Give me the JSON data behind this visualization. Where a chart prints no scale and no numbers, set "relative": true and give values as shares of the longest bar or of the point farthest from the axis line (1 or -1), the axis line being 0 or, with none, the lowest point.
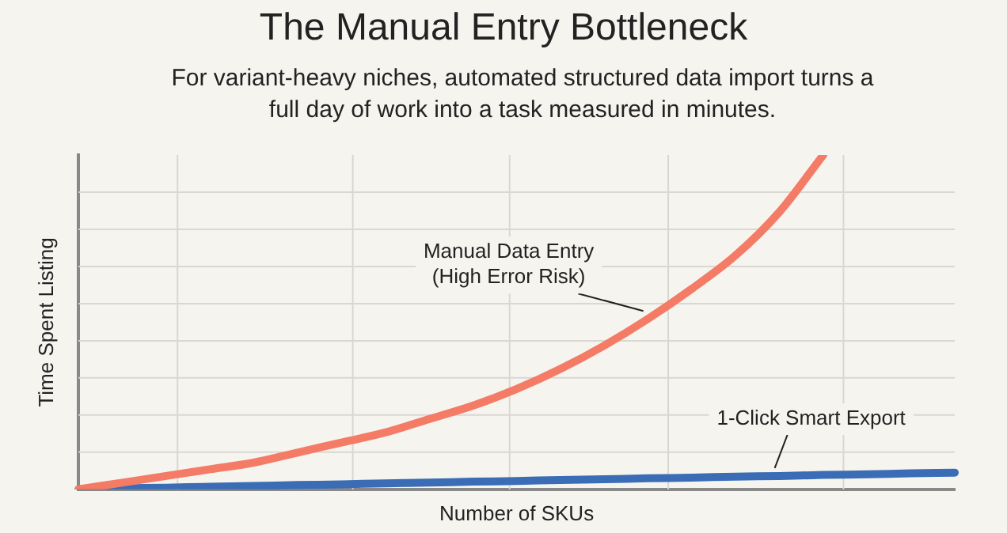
{
  "chart_data": {
    "type": "line",
    "title": "The Manual Entry Bottleneck",
    "subtitle": "For variant-heavy niches, automated structured data import turns a full day of work into a task measured in minutes.",
    "xlabel": "Number of SKUs",
    "ylabel": "Time Spent Listing",
    "relative": true,
    "grid": true,
    "marker": "none",
    "line_style": "solid",
    "categories": [
      null,
      null,
      null,
      null,
      null,
      null,
      null,
      null,
      null,
      null,
      null,
      null,
      null,
      null,
      null,
      null,
      null,
      null,
      null,
      null,
      null
    ],
    "series": [
      {
        "name": "Manual Data Entry (High Error Risk)",
        "color": "#f47b66",
        "values": [
          0,
          0.02,
          0.04,
          0.06,
          0.08,
          0.11,
          0.14,
          0.17,
          0.21,
          0.25,
          0.3,
          0.36,
          0.43,
          0.51,
          0.6,
          0.7,
          0.83,
          1,
          null,
          null,
          null
        ]
      },
      {
        "name": "1-Click Smart Export",
        "color": "#3a6db5",
        "values": [
          0,
          0.003,
          0.005,
          0.008,
          0.01,
          0.013,
          0.015,
          0.018,
          0.02,
          0.023,
          0.025,
          0.028,
          0.03,
          0.033,
          0.035,
          0.038,
          0.04,
          0.043,
          0.045,
          0.048,
          0.05
        ]
      }
    ]
  }
}
